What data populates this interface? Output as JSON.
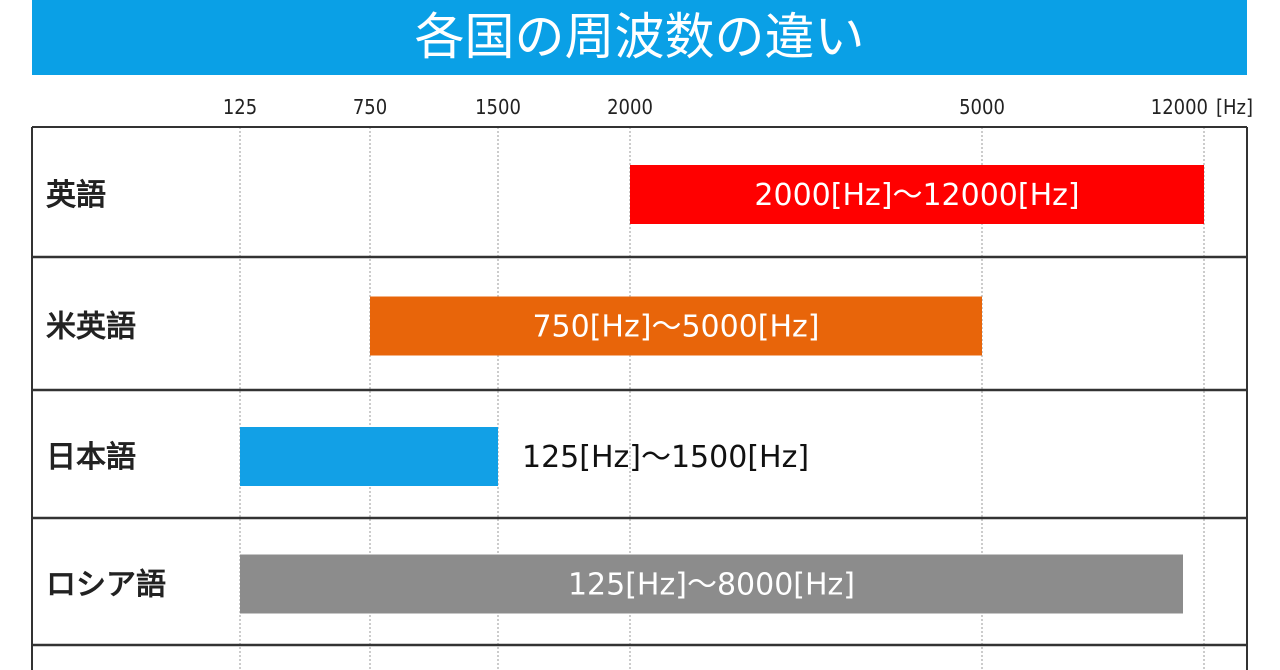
{
  "chart_data": {
    "type": "bar",
    "orientation": "horizontal-range",
    "title": "各国の周波数の違い",
    "unit": "[Hz]",
    "x_ticks": [
      125,
      750,
      1500,
      2000,
      5000,
      12000
    ],
    "x_tick_labels": [
      "125",
      "750",
      "1500",
      "2000",
      "5000",
      "12000"
    ],
    "x_scale": "non-uniform",
    "grid": true,
    "categories": [
      "英語",
      "米英語",
      "日本語",
      "ロシア語"
    ],
    "series": [
      {
        "category": "英語",
        "start": 2000,
        "end": 12000,
        "label": "2000[Hz]～12000[Hz]",
        "color": "#ff0000",
        "label_color": "#ffffff",
        "label_position": "inside"
      },
      {
        "category": "米英語",
        "start": 750,
        "end": 5000,
        "label": "750[Hz]～5000[Hz]",
        "color": "#e8650a",
        "label_color": "#ffffff",
        "label_position": "inside"
      },
      {
        "category": "日本語",
        "start": 125,
        "end": 1500,
        "label": "125[Hz]～1500[Hz]",
        "color": "#12a0e6",
        "label_color": "#111111",
        "label_position": "outside"
      },
      {
        "category": "ロシア語",
        "start": 125,
        "end": 8000,
        "label": "125[Hz]～8000[Hz]",
        "color": "#8c8c8c",
        "label_color": "#ffffff",
        "label_position": "inside"
      }
    ]
  }
}
